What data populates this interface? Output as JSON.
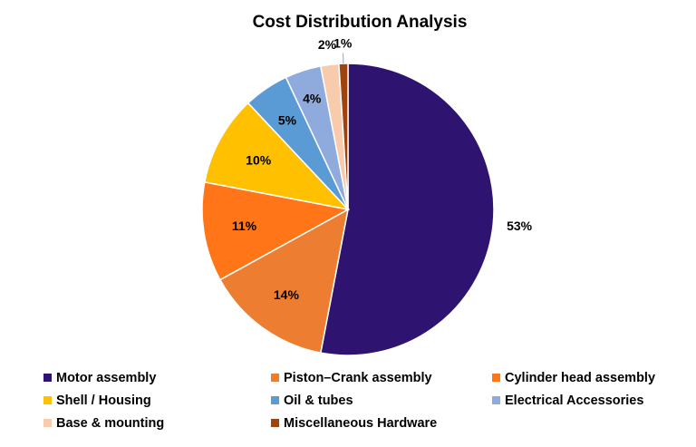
{
  "chart_data": {
    "type": "pie",
    "title": "Cost Distribution Analysis",
    "categories": [
      "Motor assembly",
      "Piston–Crank assembly",
      "Cylinder head assembly",
      "Shell / Housing",
      "Oil & tubes",
      "Electrical Accessories",
      "Base & mounting",
      "Miscellaneous Hardware"
    ],
    "values": [
      53,
      14,
      11,
      10,
      5,
      4,
      2,
      1
    ],
    "labels": [
      "53%",
      "14%",
      "11%",
      "10%",
      "5%",
      "4%",
      "2%",
      "1%"
    ],
    "colors": [
      "#2e1470",
      "#ed7d31",
      "#ff7518",
      "#ffc000",
      "#5b9bd5",
      "#8faadc",
      "#f8cbad",
      "#a0440f"
    ],
    "legend_position": "bottom",
    "start_angle": "12 o'clock",
    "direction": "clockwise"
  }
}
